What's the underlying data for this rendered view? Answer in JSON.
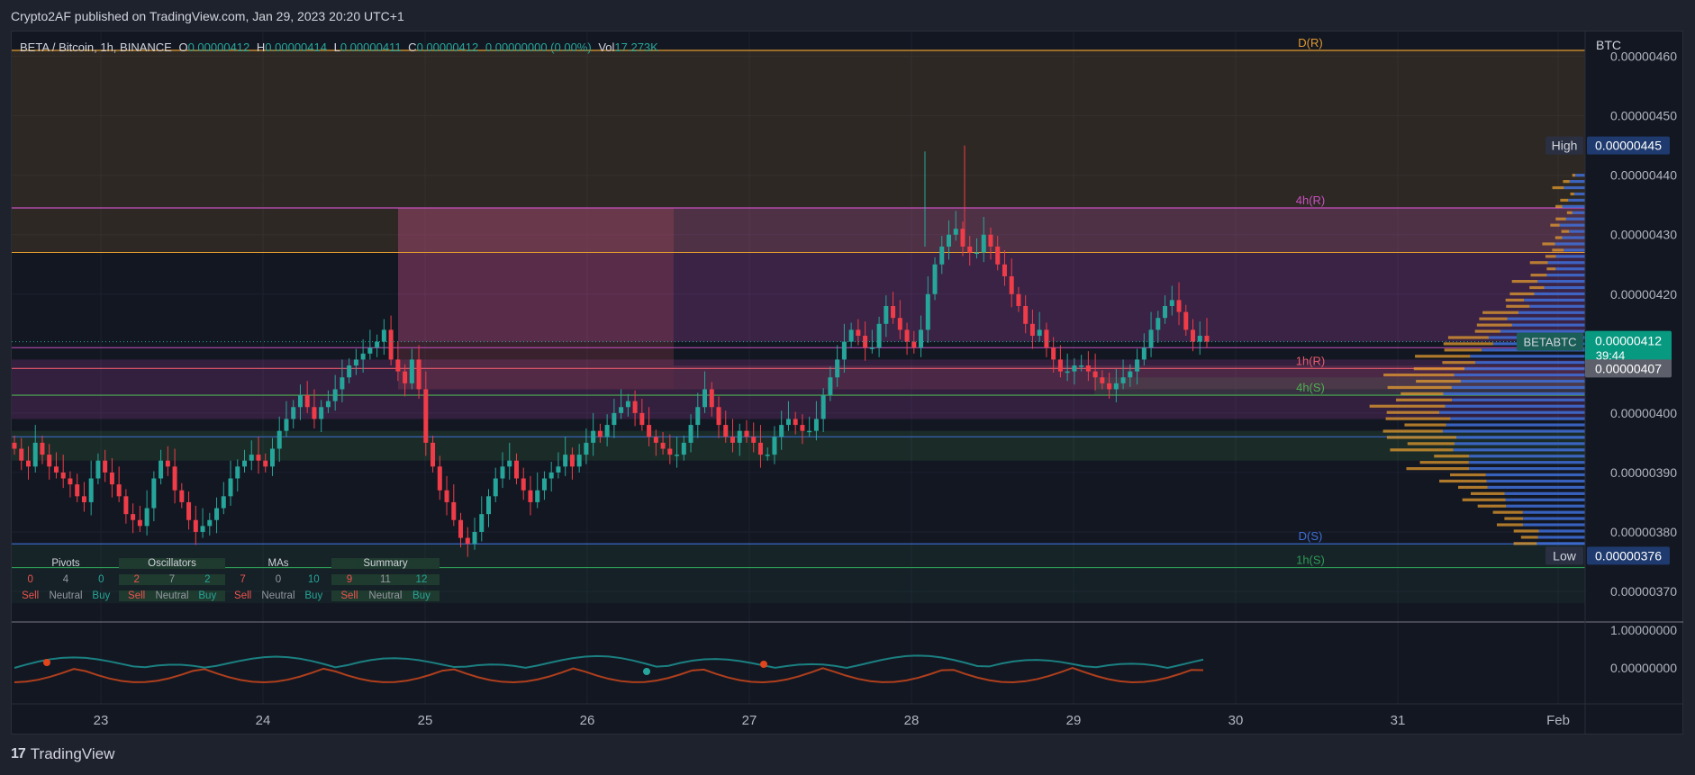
{
  "header": {
    "publisher_line": "Crypto2AF published on TradingView.com, Jan 29, 2023 20:20 UTC+1"
  },
  "footer": {
    "brand": "TradingView",
    "logo_icon": "tradingview-logo-icon"
  },
  "legend": {
    "symbol_line": "BETA / Bitcoin, 1h, BINANCE",
    "o_label": "O",
    "o": "0.00000412",
    "h_label": "H",
    "h": "0.00000414",
    "l_label": "L",
    "l": "0.00000411",
    "c_label": "C",
    "c": "0.00000412",
    "change": "0.00000000 (0.00%)",
    "vol_label": "Vol",
    "vol": "17.273K"
  },
  "price_axis": {
    "currency": "BTC",
    "ticks": [
      {
        "v": 460,
        "label": "0.00000460"
      },
      {
        "v": 450,
        "label": "0.00000450"
      },
      {
        "v": 440,
        "label": "0.00000440"
      },
      {
        "v": 430,
        "label": "0.00000430"
      },
      {
        "v": 420,
        "label": "0.00000420"
      },
      {
        "v": 400,
        "label": "0.00000400"
      },
      {
        "v": 390,
        "label": "0.00000390"
      },
      {
        "v": 380,
        "label": "0.00000380"
      },
      {
        "v": 370,
        "label": "0.00000370"
      }
    ],
    "high_label": "High",
    "high_value": "0.00000445",
    "low_label": "Low",
    "low_value": "0.00000376",
    "current_symbol": "BETABTC",
    "current_value": "0.00000412",
    "countdown": "39:44",
    "ref_value": "0.00000407"
  },
  "osc_axis": {
    "ticks": [
      "1.00000000",
      "0.00000000"
    ]
  },
  "time_axis": {
    "labels": [
      "23",
      "24",
      "25",
      "26",
      "27",
      "28",
      "29",
      "30",
      "31",
      "Feb"
    ]
  },
  "levels": [
    {
      "label": "D(R)",
      "price": 461,
      "color": "#e39b2f"
    },
    {
      "label": "4h(R)",
      "price": 434.5,
      "color": "#c850c0"
    },
    {
      "label": "1h(R)",
      "price": 407.5,
      "color": "#e85a6b"
    },
    {
      "label": "4h(S)",
      "price": 403,
      "color": "#4caf50"
    },
    {
      "label": "D(S)",
      "price": 378,
      "color": "#3f6fd8"
    },
    {
      "label": "1h(S)",
      "price": 374,
      "color": "#2e9a55"
    }
  ],
  "technicals": {
    "headers": [
      "Pivots",
      "Oscillators",
      "MAs",
      "Summary"
    ],
    "counts": [
      "0",
      "4",
      "0",
      "2",
      "7",
      "2",
      "7",
      "0",
      "10",
      "9",
      "11",
      "12"
    ],
    "words": [
      "Sell",
      "Neutral",
      "Buy",
      "Sell",
      "Neutral",
      "Buy",
      "Sell",
      "Neutral",
      "Buy",
      "Sell",
      "Neutral",
      "Buy"
    ]
  },
  "colors": {
    "up": "#26a69a",
    "down": "#ef3c48",
    "bg": "#131722",
    "grid": "#1c2030"
  },
  "chart_data": {
    "type": "candlestick",
    "symbol": "BETA / Bitcoin",
    "interval": "1h",
    "exchange": "BINANCE",
    "price_unit": "satoshi (1e-8 BTC)",
    "ylim": [
      364,
      464
    ],
    "x_dates": [
      "23",
      "24",
      "25",
      "26",
      "27",
      "28",
      "29",
      "30",
      "31",
      "Feb"
    ],
    "high": 445,
    "low": 376,
    "last": 412,
    "close_path": [
      394,
      392,
      391,
      395,
      393,
      391,
      390,
      389,
      388,
      386,
      385,
      389,
      392,
      390,
      388,
      386,
      383,
      382,
      381,
      384,
      389,
      392,
      391,
      387,
      385,
      382,
      380,
      381,
      382,
      384,
      386,
      389,
      391,
      392,
      393,
      392,
      391,
      394,
      397,
      399,
      401,
      403,
      401,
      399,
      401,
      402,
      404,
      406,
      408,
      409,
      410,
      411,
      412,
      414,
      409,
      407,
      405,
      409,
      404,
      395,
      391,
      387,
      385,
      382,
      379,
      378,
      380,
      383,
      386,
      389,
      391,
      392,
      389,
      387,
      385,
      387,
      389,
      390,
      391,
      393,
      391,
      393,
      395,
      397,
      396,
      398,
      400,
      401,
      402,
      400,
      398,
      396,
      395,
      394,
      393,
      393,
      395,
      398,
      401,
      404,
      401,
      398,
      396,
      395,
      397,
      396,
      395,
      393,
      393,
      396,
      398,
      399,
      398,
      397,
      397,
      399,
      403,
      406,
      409,
      412,
      414,
      413,
      411,
      411,
      415,
      418,
      416,
      414,
      412,
      411,
      414,
      420,
      425,
      428,
      430,
      431,
      428,
      427,
      427,
      430,
      428,
      425,
      423,
      420,
      418,
      415,
      413,
      414,
      411,
      409,
      407,
      407,
      408,
      408,
      407,
      406,
      405,
      404,
      405,
      406,
      407,
      409,
      411,
      414,
      416,
      418,
      419,
      417,
      414,
      412,
      413,
      412
    ]
  }
}
